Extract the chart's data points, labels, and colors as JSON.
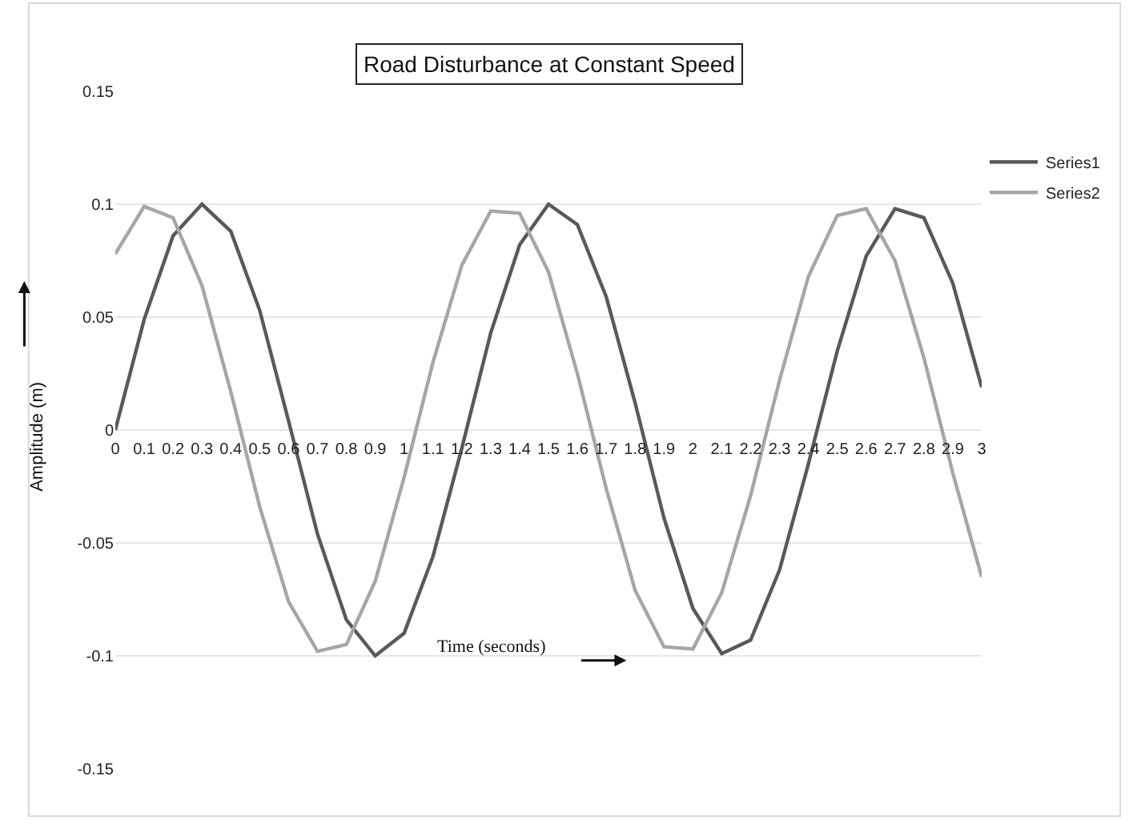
{
  "chart_data": {
    "type": "line",
    "title": "Road Disturbance at Constant Speed",
    "xlabel": "Time (seconds)",
    "ylabel": "Amplitude (m)",
    "x": [
      0,
      0.1,
      0.2,
      0.3,
      0.4,
      0.5,
      0.6,
      0.7,
      0.8,
      0.9,
      1,
      1.1,
      1.2,
      1.3,
      1.4,
      1.5,
      1.6,
      1.7,
      1.8,
      1.9,
      2,
      2.1,
      2.2,
      2.3,
      2.4,
      2.5,
      2.6,
      2.7,
      2.8,
      2.9,
      3
    ],
    "series": [
      {
        "name": "Series1",
        "color": "#595959",
        "values": [
          0,
          0.049,
          0.086,
          0.1,
          0.088,
          0.053,
          0.004,
          -0.046,
          -0.084,
          -0.1,
          -0.09,
          -0.056,
          -0.008,
          0.043,
          0.082,
          0.1,
          0.091,
          0.059,
          0.012,
          -0.039,
          -0.079,
          -0.099,
          -0.093,
          -0.062,
          -0.015,
          0.035,
          0.077,
          0.098,
          0.094,
          0.065,
          0.019
        ]
      },
      {
        "name": "Series2",
        "color": "#a6a6a6",
        "values": [
          0.078,
          0.099,
          0.094,
          0.064,
          0.017,
          -0.034,
          -0.076,
          -0.098,
          -0.095,
          -0.067,
          -0.021,
          0.03,
          0.073,
          0.097,
          0.096,
          0.07,
          0.025,
          -0.026,
          -0.071,
          -0.096,
          -0.097,
          -0.072,
          -0.029,
          0.022,
          0.068,
          0.095,
          0.098,
          0.075,
          0.032,
          -0.019,
          -0.065
        ]
      }
    ],
    "xlim": [
      0,
      3
    ],
    "xticks": [
      0,
      0.1,
      0.2,
      0.3,
      0.4,
      0.5,
      0.6,
      0.7,
      0.8,
      0.9,
      1,
      1.1,
      1.2,
      1.3,
      1.4,
      1.5,
      1.6,
      1.7,
      1.8,
      1.9,
      2,
      2.1,
      2.2,
      2.3,
      2.4,
      2.5,
      2.6,
      2.7,
      2.8,
      2.9,
      3
    ],
    "ylim": [
      -0.15,
      0.15
    ],
    "yticks": [
      -0.15,
      -0.1,
      -0.05,
      0,
      0.05,
      0.1,
      0.15
    ],
    "grid": "y",
    "legend": "top right",
    "marker": "none",
    "line_style": "solid"
  }
}
